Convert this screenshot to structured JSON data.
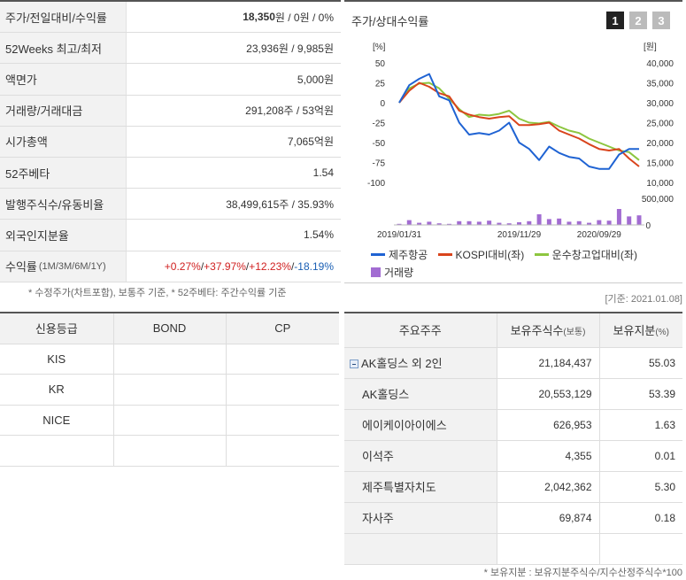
{
  "summary": {
    "rows": [
      {
        "label": "주가/전일대비/수익률",
        "value_bold": "18,350",
        "value_rest": "원 / 0원 / 0%"
      },
      {
        "label": "52Weeks 최고/최저",
        "value": "23,936원 / 9,985원"
      },
      {
        "label": "액면가",
        "value": "5,000원"
      },
      {
        "label": "거래량/거래대금",
        "value": "291,208주 / 53억원"
      },
      {
        "label": "시가총액",
        "value": "7,065억원"
      },
      {
        "label": "52주베타",
        "value": "1.54"
      },
      {
        "label": "발행주식수/유동비율",
        "value": "38,499,615주 / 35.93%"
      },
      {
        "label": "외국인지분율",
        "value": "1.54%"
      }
    ],
    "returns": {
      "label": "수익률",
      "label_sub": "(1M/3M/6M/1Y)",
      "v1": "+0.27%",
      "v2": "+37.97%",
      "v3": "+12.23%",
      "v4": "-18.19%",
      "sep": "/ "
    },
    "note": "* 수정주가(차트포함), 보통주 기준, * 52주베타: 주간수익률 기준"
  },
  "chart": {
    "title": "주가/상대수익률",
    "pages": [
      "1",
      "2",
      "3"
    ],
    "left_unit": "[%]",
    "right_unit": "[원]",
    "date_note": "[기준: 2021.01.08]",
    "legend": {
      "s1": "제주항공",
      "s2": "KOSPI대비(좌)",
      "s3": "운수창고업대비(좌)",
      "s4": "거래량"
    }
  },
  "chart_data": {
    "type": "line",
    "x_ticks": [
      "2019/01/31",
      "2019/11/29",
      "2020/09/29"
    ],
    "left_ticks": [
      "50",
      "25",
      "0",
      "-25",
      "-50",
      "-75",
      "-100"
    ],
    "right_ticks": [
      "40,000",
      "35,000",
      "30,000",
      "25,000",
      "20,000",
      "15,000",
      "10,000"
    ],
    "volume_ticks": [
      "500,000",
      "0"
    ],
    "ylim_left": [
      -100,
      50
    ],
    "ylim_right": [
      10000,
      40000
    ],
    "volume_max": 500000,
    "series": [
      {
        "name": "제주항공",
        "color": "#1f63d3",
        "values": [
          0,
          22,
          30,
          36,
          8,
          3,
          -25,
          -40,
          -38,
          -40,
          -35,
          -25,
          -50,
          -58,
          -72,
          -55,
          -63,
          -68,
          -70,
          -80,
          -83,
          -83,
          -65,
          -58,
          -58
        ]
      },
      {
        "name": "KOSPI대비(좌)",
        "color": "#d9441c",
        "values": [
          0,
          15,
          25,
          20,
          12,
          8,
          -10,
          -15,
          -18,
          -20,
          -18,
          -17,
          -28,
          -28,
          -27,
          -25,
          -35,
          -40,
          -45,
          -52,
          -58,
          -60,
          -58,
          -70,
          -80
        ]
      },
      {
        "name": "운수창고업대비(좌)",
        "color": "#8dc63f",
        "values": [
          0,
          18,
          24,
          25,
          18,
          5,
          -8,
          -18,
          -15,
          -16,
          -14,
          -10,
          -20,
          -25,
          -26,
          -24,
          -30,
          -35,
          -38,
          -45,
          -50,
          -55,
          -60,
          -62,
          -72
        ]
      }
    ],
    "volume": {
      "name": "거래량",
      "color": "#a26cd2",
      "values": [
        20000,
        90000,
        40000,
        60000,
        30000,
        20000,
        70000,
        70000,
        60000,
        80000,
        40000,
        30000,
        50000,
        70000,
        200000,
        110000,
        120000,
        60000,
        70000,
        40000,
        90000,
        80000,
        300000,
        160000,
        180000
      ]
    }
  },
  "credit": {
    "headers": [
      "신용등급",
      "BOND",
      "CP"
    ],
    "rows": [
      {
        "agency": "KIS",
        "bond": "",
        "cp": ""
      },
      {
        "agency": "KR",
        "bond": "",
        "cp": ""
      },
      {
        "agency": "NICE",
        "bond": "",
        "cp": ""
      },
      {
        "agency": "",
        "bond": "",
        "cp": ""
      }
    ]
  },
  "holders": {
    "header_name": "주요주주",
    "header_shares": "보유주식수",
    "header_shares_sub": "(보통)",
    "header_pct": "보유지분",
    "header_pct_sub": "(%)",
    "rows": [
      {
        "name": "AK홀딩스 외 2인",
        "shares": "21,184,437",
        "pct": "55.03"
      },
      {
        "name": "AK홀딩스",
        "shares": "20,553,129",
        "pct": "53.39"
      },
      {
        "name": "에이케이아이에스",
        "shares": "626,953",
        "pct": "1.63"
      },
      {
        "name": "이석주",
        "shares": "4,355",
        "pct": "0.01"
      },
      {
        "name": "제주특별자치도",
        "shares": "2,042,362",
        "pct": "5.30"
      },
      {
        "name": "자사주",
        "shares": "69,874",
        "pct": "0.18"
      },
      {
        "name": "",
        "shares": "",
        "pct": ""
      }
    ],
    "note": "* 보유지분 : 보유지분주식수/지수산정주식수*100"
  }
}
